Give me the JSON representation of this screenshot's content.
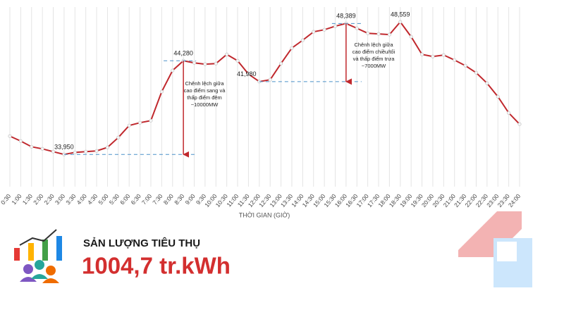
{
  "chart_data": {
    "type": "line",
    "x_label": "THỜI GIAN (GIỜ)",
    "categories": [
      "0:30",
      "1:00",
      "1:30",
      "2:00",
      "2:30",
      "3:00",
      "3:30",
      "4:00",
      "4:30",
      "5:00",
      "5:30",
      "6:00",
      "6:30",
      "7:00",
      "7:30",
      "8:00",
      "8:30",
      "9:00",
      "9:30",
      "10:00",
      "10:30",
      "11:00",
      "11:30",
      "12:00",
      "12:30",
      "13:00",
      "13:30",
      "14:00",
      "14:30",
      "15:00",
      "15:30",
      "16:00",
      "16:30",
      "17:00",
      "17:30",
      "18:00",
      "18:30",
      "19:00",
      "19:30",
      "20:00",
      "20:30",
      "21:00",
      "21:30",
      "22:00",
      "22:30",
      "23:00",
      "23:30",
      "24:00"
    ],
    "series": [
      {
        "color": "#c0282d",
        "values": [
          35970,
          35430,
          34800,
          34570,
          34260,
          33950,
          34180,
          34260,
          34340,
          34730,
          35820,
          37140,
          37450,
          37680,
          40870,
          43200,
          44280,
          44050,
          43900,
          43970,
          44980,
          44280,
          42810,
          41980,
          42190,
          43970,
          45680,
          46540,
          47470,
          47700,
          48090,
          48389,
          47860,
          47310,
          47240,
          47160,
          48559,
          46930,
          44980,
          44750,
          44910,
          44360,
          43740,
          42960,
          41800,
          40320,
          38530,
          37290
        ],
        "value_labels": [
          null,
          null,
          null,
          null,
          null,
          "33,950",
          null,
          null,
          null,
          null,
          null,
          null,
          null,
          null,
          null,
          null,
          "44,280",
          null,
          null,
          null,
          null,
          null,
          null,
          "41,980",
          null,
          null,
          null,
          null,
          null,
          null,
          null,
          "48,389",
          null,
          null,
          null,
          null,
          "48,559",
          null,
          null,
          null,
          null,
          null,
          null,
          null,
          null,
          null,
          null,
          null
        ]
      }
    ],
    "ylim": [
      30400,
      50200
    ],
    "annotations": [
      {
        "lines": [
          "Chênh lệch giữa",
          "cao điểm sang và",
          "thấp điểm đêm",
          "~10000MW"
        ]
      },
      {
        "lines": [
          "Chênh lệch giữa",
          "cao điểm chiều/tối",
          "và thấp điểm trưa",
          "~7000MW"
        ]
      }
    ]
  },
  "footer": {
    "label": "SẢN LƯỢNG TIÊU THỤ",
    "value": "1004,7 tr.kWh"
  }
}
